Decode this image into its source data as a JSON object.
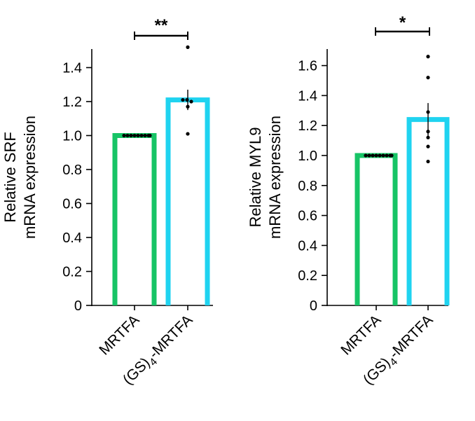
{
  "chart_data": [
    {
      "type": "bar",
      "ylabel_line1": "Relative SRF",
      "ylabel_line2": "mRNA expression",
      "categories": [
        {
          "label": "MRTFA"
        },
        {
          "label_prefix": "(GS)",
          "label_sub": "4",
          "label_suffix": "-MRTFA"
        }
      ],
      "values": [
        1.0,
        1.21
      ],
      "error": [
        0,
        0.06
      ],
      "colors": [
        "#17c466",
        "#1fd3f0"
      ],
      "points": [
        [
          1.0,
          1.0,
          1.0,
          1.0,
          1.0,
          1.0,
          1.0,
          1.0,
          1.0
        ],
        [
          1.52,
          1.21,
          1.21,
          1.2,
          1.17,
          1.01
        ]
      ],
      "ylim": [
        0,
        1.5
      ],
      "yticks": [
        0,
        0.2,
        0.4,
        0.6,
        0.8,
        1.0,
        1.2,
        1.4
      ],
      "ytick_labels": [
        "0",
        "0.2",
        "0.4",
        "0.6",
        "0.8",
        "1.0",
        "1.2",
        "1.4"
      ],
      "significance": "**"
    },
    {
      "type": "bar",
      "ylabel_line1": "Relative MYL9",
      "ylabel_line2": "mRNA expression",
      "categories": [
        {
          "label": "MRTFA"
        },
        {
          "label_prefix": "(GS)",
          "label_sub": "4",
          "label_suffix": "-MRTFA"
        }
      ],
      "values": [
        1.0,
        1.24
      ],
      "error": [
        0,
        0.11
      ],
      "colors": [
        "#17c466",
        "#1fd3f0"
      ],
      "points": [
        [
          1.0,
          1.0,
          1.0,
          1.0,
          1.0,
          1.0,
          1.0,
          1.0,
          1.0
        ],
        [
          1.66,
          1.52,
          1.29,
          1.16,
          1.12,
          1.06,
          0.96
        ]
      ],
      "ylim": [
        0,
        1.7
      ],
      "yticks": [
        0,
        0.2,
        0.4,
        0.6,
        0.8,
        1.0,
        1.2,
        1.4,
        1.6
      ],
      "ytick_labels": [
        "0",
        "0.2",
        "0.4",
        "0.6",
        "0.8",
        "1.0",
        "1.2",
        "1.4",
        "1.6"
      ],
      "significance": "*"
    }
  ]
}
